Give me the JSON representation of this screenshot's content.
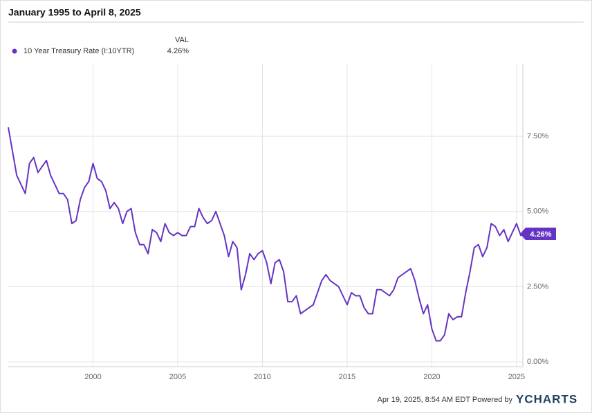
{
  "chart_data": {
    "type": "line",
    "title": "January 1995 to April 8, 2025",
    "legend_header": "VAL",
    "footer": "Apr 19, 2025, 8:54 AM EDT Powered by",
    "brand": "YCHARTS",
    "x": [
      1995.0,
      1995.25,
      1995.5,
      1995.75,
      1996.0,
      1996.25,
      1996.5,
      1996.75,
      1997.0,
      1997.25,
      1997.5,
      1997.75,
      1998.0,
      1998.25,
      1998.5,
      1998.75,
      1999.0,
      1999.25,
      1999.5,
      1999.75,
      2000.0,
      2000.25,
      2000.5,
      2000.75,
      2001.0,
      2001.25,
      2001.5,
      2001.75,
      2002.0,
      2002.25,
      2002.5,
      2002.75,
      2003.0,
      2003.25,
      2003.5,
      2003.75,
      2004.0,
      2004.25,
      2004.5,
      2004.75,
      2005.0,
      2005.25,
      2005.5,
      2005.75,
      2006.0,
      2006.25,
      2006.5,
      2006.75,
      2007.0,
      2007.25,
      2007.5,
      2007.75,
      2008.0,
      2008.25,
      2008.5,
      2008.75,
      2009.0,
      2009.25,
      2009.5,
      2009.75,
      2010.0,
      2010.25,
      2010.5,
      2010.75,
      2011.0,
      2011.25,
      2011.5,
      2011.75,
      2012.0,
      2012.25,
      2012.5,
      2012.75,
      2013.0,
      2013.25,
      2013.5,
      2013.75,
      2014.0,
      2014.25,
      2014.5,
      2014.75,
      2015.0,
      2015.25,
      2015.5,
      2015.75,
      2016.0,
      2016.25,
      2016.5,
      2016.75,
      2017.0,
      2017.25,
      2017.5,
      2017.75,
      2018.0,
      2018.25,
      2018.5,
      2018.75,
      2019.0,
      2019.25,
      2019.5,
      2019.75,
      2020.0,
      2020.25,
      2020.5,
      2020.75,
      2021.0,
      2021.25,
      2021.5,
      2021.75,
      2022.0,
      2022.25,
      2022.5,
      2022.75,
      2023.0,
      2023.25,
      2023.5,
      2023.75,
      2024.0,
      2024.25,
      2024.5,
      2024.75,
      2025.0,
      2025.25,
      2025.27
    ],
    "series": [
      {
        "name": "10 Year Treasury Rate (I:10YTR)",
        "color": "#6434c4",
        "last_label": "4.26%",
        "values": [
          7.8,
          7.0,
          6.2,
          5.9,
          5.6,
          6.6,
          6.8,
          6.3,
          6.5,
          6.7,
          6.2,
          5.9,
          5.6,
          5.6,
          5.4,
          4.6,
          4.7,
          5.4,
          5.8,
          6.0,
          6.6,
          6.1,
          6.0,
          5.7,
          5.1,
          5.3,
          5.1,
          4.6,
          5.0,
          5.1,
          4.3,
          3.9,
          3.9,
          3.6,
          4.4,
          4.3,
          4.0,
          4.6,
          4.3,
          4.2,
          4.3,
          4.2,
          4.2,
          4.5,
          4.5,
          5.1,
          4.8,
          4.6,
          4.7,
          5.0,
          4.6,
          4.2,
          3.5,
          4.0,
          3.8,
          2.4,
          2.9,
          3.6,
          3.4,
          3.6,
          3.7,
          3.3,
          2.6,
          3.3,
          3.4,
          3.0,
          2.0,
          2.0,
          2.2,
          1.6,
          1.7,
          1.8,
          1.9,
          2.3,
          2.7,
          2.9,
          2.7,
          2.6,
          2.5,
          2.2,
          1.9,
          2.3,
          2.2,
          2.2,
          1.8,
          1.6,
          1.6,
          2.4,
          2.4,
          2.3,
          2.2,
          2.4,
          2.8,
          2.9,
          3.0,
          3.1,
          2.7,
          2.1,
          1.6,
          1.9,
          1.1,
          0.7,
          0.7,
          0.9,
          1.6,
          1.4,
          1.5,
          1.5,
          2.3,
          3.0,
          3.8,
          3.9,
          3.5,
          3.8,
          4.6,
          4.5,
          4.2,
          4.4,
          4.0,
          4.3,
          4.6,
          4.2,
          4.26
        ]
      }
    ],
    "xlim": [
      1995,
      2025.37
    ],
    "xticks": [
      2000,
      2005,
      2010,
      2015,
      2020,
      2025
    ],
    "ylim": [
      -0.16,
      9.92
    ],
    "yticks": [
      {
        "value": 0,
        "label": "0.00%"
      },
      {
        "value": 2.5,
        "label": "2.50%"
      },
      {
        "value": 5,
        "label": "5.00%"
      },
      {
        "value": 7.5,
        "label": "7.50%"
      }
    ],
    "grid": true
  }
}
